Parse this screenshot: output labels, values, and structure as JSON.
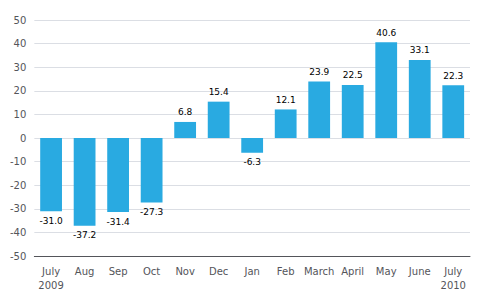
{
  "chart_data": {
    "type": "bar",
    "categories": [
      "July",
      "Aug",
      "Sep",
      "Oct",
      "Nov",
      "Dec",
      "Jan",
      "Feb",
      "March",
      "April",
      "May",
      "June",
      "July"
    ],
    "values": [
      -31.0,
      -37.2,
      -31.4,
      -27.3,
      6.8,
      15.4,
      -6.3,
      12.1,
      23.9,
      22.5,
      40.6,
      33.1,
      22.3
    ],
    "value_labels": [
      "-31.0",
      "-37.2",
      "-31.4",
      "-27.3",
      "6.8",
      "15.4",
      "-6.3",
      "12.1",
      "23.9",
      "22.5",
      "40.6",
      "33.1",
      "22.3"
    ],
    "data_labels": true,
    "color": "#29aae1",
    "ylim": [
      -50,
      50
    ],
    "yticks": [
      -50,
      -40,
      -30,
      -20,
      -10,
      0,
      10,
      20,
      30,
      40,
      50
    ],
    "grid": true,
    "annotations": [
      {
        "text": "2009",
        "index": 0
      },
      {
        "text": "2010",
        "index": 12
      }
    ]
  }
}
